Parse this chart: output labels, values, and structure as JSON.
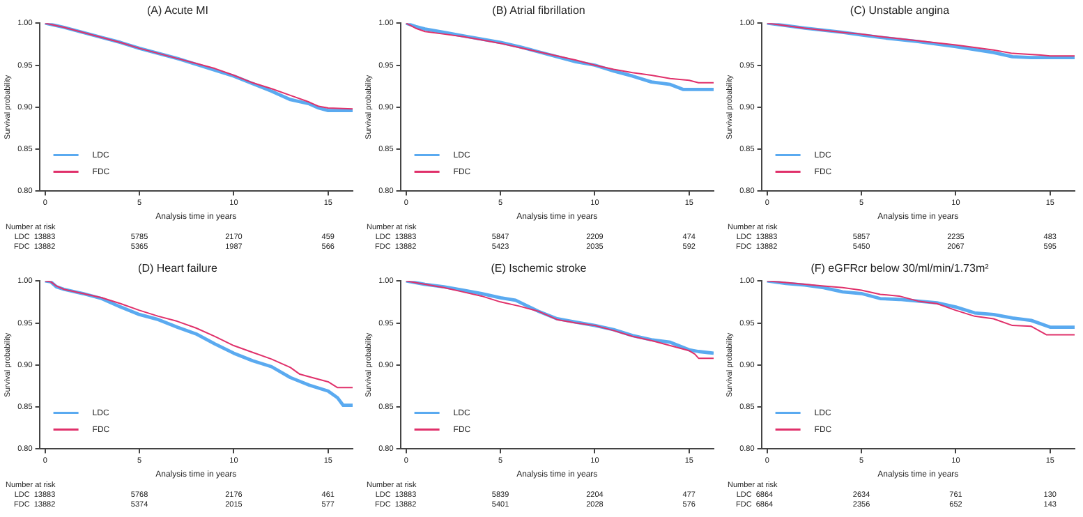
{
  "chart_data": [
    {
      "type": "line",
      "title": "(A) Acute MI",
      "xlabel": "Analysis time in years",
      "ylabel": "Survival probability",
      "xlim": [
        -0.3,
        16.3
      ],
      "xticks": [
        0,
        5,
        10,
        15
      ],
      "ylim": [
        0.8,
        1.0
      ],
      "yticks": [
        {
          "value": 0.8,
          "label": "0.80"
        },
        {
          "value": 0.85,
          "label": "0.85"
        },
        {
          "value": 0.9,
          "label": "0.90"
        },
        {
          "value": 0.95,
          "label": "0.95"
        },
        {
          "value": 1.0,
          "label": "1.00"
        }
      ],
      "grid": false,
      "legend": "bottom left",
      "marker": "none",
      "line_style": "solid",
      "series": [
        {
          "name": "LDC",
          "color": "#5aaaf0",
          "x": [
            0,
            1,
            2,
            3,
            4,
            5,
            6,
            7,
            8,
            9,
            10,
            11,
            12,
            13,
            14,
            14.5,
            15,
            16.3
          ],
          "values": [
            1,
            0.995,
            0.989,
            0.983,
            0.977,
            0.97,
            0.964,
            0.958,
            0.951,
            0.944,
            0.937,
            0.928,
            0.919,
            0.909,
            0.904,
            0.899,
            0.896,
            0.896
          ]
        },
        {
          "name": "FDC",
          "color": "#e0306a",
          "x": [
            0,
            1,
            2,
            3,
            4,
            5,
            6,
            7,
            8,
            9,
            10,
            11,
            12,
            13,
            14,
            14.5,
            15,
            16.3
          ],
          "values": [
            1,
            0.995,
            0.989,
            0.983,
            0.977,
            0.97,
            0.964,
            0.958,
            0.952,
            0.946,
            0.938,
            0.929,
            0.922,
            0.914,
            0.906,
            0.901,
            0.899,
            0.898
          ]
        }
      ],
      "annotations": [
        "Number at risk",
        "LDC",
        "13883",
        "5785",
        "2170",
        "459",
        "FDC",
        "13882",
        "5365",
        "1987",
        "566"
      ]
    },
    {
      "type": "line",
      "title": "(B) Atrial fibrillation",
      "xlabel": "Analysis time in years",
      "ylabel": "Survival probability",
      "xlim": [
        -0.3,
        16.3
      ],
      "xticks": [
        0,
        5,
        10,
        15
      ],
      "ylim": [
        0.8,
        1.0
      ],
      "yticks": [
        {
          "value": 0.8,
          "label": "0.80"
        },
        {
          "value": 0.85,
          "label": "0.85"
        },
        {
          "value": 0.9,
          "label": "0.90"
        },
        {
          "value": 0.95,
          "label": "0.95"
        },
        {
          "value": 1.0,
          "label": "1.00"
        }
      ],
      "grid": false,
      "legend": "bottom left",
      "marker": "none",
      "line_style": "solid",
      "series": [
        {
          "name": "LDC",
          "color": "#5aaaf0",
          "x": [
            0,
            0.5,
            1,
            2,
            3,
            4,
            5,
            6,
            7,
            8,
            9,
            10,
            11,
            12,
            13,
            14,
            14.7,
            16.3
          ],
          "values": [
            1,
            0.996,
            0.993,
            0.989,
            0.985,
            0.981,
            0.977,
            0.972,
            0.966,
            0.96,
            0.954,
            0.95,
            0.943,
            0.937,
            0.93,
            0.927,
            0.921,
            0.921
          ]
        },
        {
          "name": "FDC",
          "color": "#e0306a",
          "x": [
            0,
            0.5,
            1,
            2,
            3,
            4,
            5,
            6,
            7,
            8,
            9,
            10,
            11,
            12,
            13,
            14,
            15,
            15.5,
            16.3
          ],
          "values": [
            1,
            0.994,
            0.99,
            0.987,
            0.984,
            0.98,
            0.976,
            0.971,
            0.966,
            0.961,
            0.956,
            0.95,
            0.945,
            0.941,
            0.938,
            0.934,
            0.932,
            0.929,
            0.929
          ]
        }
      ],
      "annotations": [
        "Number at risk",
        "LDC",
        "13883",
        "5847",
        "2209",
        "474",
        "FDC",
        "13882",
        "5423",
        "2035",
        "592"
      ]
    },
    {
      "type": "line",
      "title": "(C) Unstable angina",
      "xlabel": "Analysis time in years",
      "ylabel": "Survival probability",
      "xlim": [
        -0.3,
        16.3
      ],
      "xticks": [
        0,
        5,
        10,
        15
      ],
      "ylim": [
        0.8,
        1.0
      ],
      "yticks": [
        {
          "value": 0.8,
          "label": "0.80"
        },
        {
          "value": 0.85,
          "label": "0.85"
        },
        {
          "value": 0.9,
          "label": "0.90"
        },
        {
          "value": 0.95,
          "label": "0.95"
        },
        {
          "value": 1.0,
          "label": "1.00"
        }
      ],
      "grid": false,
      "legend": "bottom left",
      "marker": "none",
      "line_style": "solid",
      "series": [
        {
          "name": "LDC",
          "color": "#5aaaf0",
          "x": [
            0,
            2,
            4,
            5,
            6,
            8,
            10,
            12,
            13,
            14,
            16.3
          ],
          "values": [
            1,
            0.994,
            0.989,
            0.986,
            0.983,
            0.978,
            0.972,
            0.965,
            0.96,
            0.959,
            0.959
          ]
        },
        {
          "name": "FDC",
          "color": "#e0306a",
          "x": [
            0,
            2,
            4,
            5,
            6,
            8,
            10,
            12,
            13,
            14.5,
            15,
            16.3
          ],
          "values": [
            1,
            0.994,
            0.989,
            0.987,
            0.984,
            0.979,
            0.974,
            0.968,
            0.964,
            0.962,
            0.961,
            0.961
          ]
        }
      ],
      "annotations": [
        "Number at risk",
        "LDC",
        "13883",
        "5857",
        "2235",
        "483",
        "FDC",
        "13882",
        "5450",
        "2067",
        "595"
      ]
    },
    {
      "type": "line",
      "title": "(D) Heart failure",
      "xlabel": "Analysis time in years",
      "ylabel": "Survival probability",
      "xlim": [
        -0.3,
        16.3
      ],
      "xticks": [
        0,
        5,
        10,
        15
      ],
      "ylim": [
        0.8,
        1.0
      ],
      "yticks": [
        {
          "value": 0.8,
          "label": "0.80"
        },
        {
          "value": 0.85,
          "label": "0.85"
        },
        {
          "value": 0.9,
          "label": "0.90"
        },
        {
          "value": 0.95,
          "label": "0.95"
        },
        {
          "value": 1.0,
          "label": "1.00"
        }
      ],
      "grid": false,
      "legend": "bottom left",
      "marker": "none",
      "line_style": "solid",
      "series": [
        {
          "name": "LDC",
          "color": "#5aaaf0",
          "x": [
            0,
            0.3,
            0.6,
            1,
            2,
            3,
            4,
            5,
            6,
            7,
            8,
            9,
            10,
            11,
            12,
            13,
            14,
            15,
            15.5,
            15.8,
            16.3
          ],
          "values": [
            1,
            0.999,
            0.993,
            0.99,
            0.985,
            0.979,
            0.969,
            0.96,
            0.954,
            0.945,
            0.937,
            0.925,
            0.914,
            0.905,
            0.898,
            0.885,
            0.876,
            0.869,
            0.861,
            0.852,
            0.852
          ]
        },
        {
          "name": "FDC",
          "color": "#e0306a",
          "x": [
            0,
            0.3,
            0.6,
            1,
            2,
            3,
            4,
            5,
            6,
            7,
            8,
            9,
            10,
            11,
            12,
            13,
            13.5,
            14,
            15,
            15.5,
            16.3
          ],
          "values": [
            1,
            0.999,
            0.994,
            0.99,
            0.985,
            0.98,
            0.973,
            0.965,
            0.958,
            0.952,
            0.944,
            0.934,
            0.923,
            0.915,
            0.907,
            0.897,
            0.889,
            0.886,
            0.88,
            0.873,
            0.873
          ]
        }
      ],
      "annotations": [
        "Number at risk",
        "LDC",
        "13883",
        "5768",
        "2176",
        "461",
        "FDC",
        "13882",
        "5374",
        "2015",
        "577"
      ]
    },
    {
      "type": "line",
      "title": "(E) Ischemic stroke",
      "xlabel": "Analysis time in years",
      "ylabel": "Survival probability",
      "xlim": [
        -0.3,
        16.3
      ],
      "xticks": [
        0,
        5,
        10,
        15
      ],
      "ylim": [
        0.8,
        1.0
      ],
      "yticks": [
        {
          "value": 0.8,
          "label": "0.80"
        },
        {
          "value": 0.85,
          "label": "0.85"
        },
        {
          "value": 0.9,
          "label": "0.90"
        },
        {
          "value": 0.95,
          "label": "0.95"
        },
        {
          "value": 1.0,
          "label": "1.00"
        }
      ],
      "grid": false,
      "legend": "bottom left",
      "marker": "none",
      "line_style": "solid",
      "series": [
        {
          "name": "LDC",
          "color": "#5aaaf0",
          "x": [
            0,
            1,
            2,
            3,
            4,
            5,
            5.8,
            7,
            8,
            9,
            10,
            11,
            12,
            13,
            14,
            15,
            15.5,
            16.3
          ],
          "values": [
            1,
            0.996,
            0.993,
            0.989,
            0.985,
            0.98,
            0.977,
            0.964,
            0.955,
            0.951,
            0.947,
            0.942,
            0.935,
            0.93,
            0.927,
            0.918,
            0.916,
            0.914
          ]
        },
        {
          "name": "FDC",
          "color": "#e0306a",
          "x": [
            0,
            1,
            2,
            3,
            4,
            5,
            6,
            7,
            8,
            9,
            10,
            11,
            12,
            13,
            14,
            15,
            15.3,
            15.5,
            16.3
          ],
          "values": [
            1,
            0.996,
            0.992,
            0.987,
            0.982,
            0.975,
            0.97,
            0.964,
            0.954,
            0.95,
            0.947,
            0.941,
            0.934,
            0.929,
            0.923,
            0.917,
            0.913,
            0.908,
            0.908
          ]
        }
      ],
      "annotations": [
        "Number at risk",
        "LDC",
        "13883",
        "5839",
        "2204",
        "477",
        "FDC",
        "13882",
        "5401",
        "2028",
        "576"
      ]
    },
    {
      "type": "line",
      "title": "(F) eGFRcr below 30/ml/min/1.73m²",
      "xlabel": "Analysis time in years",
      "ylabel": "Survival probability",
      "xlim": [
        -0.3,
        16.3
      ],
      "xticks": [
        0,
        5,
        10,
        15
      ],
      "ylim": [
        0.8,
        1.0
      ],
      "yticks": [
        {
          "value": 0.8,
          "label": "0.80"
        },
        {
          "value": 0.85,
          "label": "0.85"
        },
        {
          "value": 0.9,
          "label": "0.90"
        },
        {
          "value": 0.95,
          "label": "0.95"
        },
        {
          "value": 1.0,
          "label": "1.00"
        }
      ],
      "grid": false,
      "legend": "bottom left",
      "marker": "none",
      "line_style": "solid",
      "series": [
        {
          "name": "LDC",
          "color": "#5aaaf0",
          "x": [
            0,
            1,
            2,
            3,
            4,
            5,
            6,
            7,
            8,
            9,
            10,
            11,
            12,
            13,
            14,
            15,
            16.3
          ],
          "values": [
            1,
            0.997,
            0.995,
            0.992,
            0.987,
            0.985,
            0.979,
            0.978,
            0.976,
            0.974,
            0.969,
            0.962,
            0.96,
            0.956,
            0.953,
            0.945,
            0.945
          ]
        },
        {
          "name": "FDC",
          "color": "#e0306a",
          "x": [
            0,
            1,
            2,
            3,
            4,
            5,
            6,
            7,
            8,
            9,
            10,
            11,
            12,
            13,
            14,
            14.8,
            16.3
          ],
          "values": [
            1,
            0.998,
            0.996,
            0.994,
            0.992,
            0.989,
            0.984,
            0.982,
            0.976,
            0.973,
            0.965,
            0.958,
            0.955,
            0.947,
            0.946,
            0.936,
            0.936
          ]
        }
      ],
      "annotations": [
        "Number at risk",
        "LDC",
        "6864",
        "2634",
        "761",
        "130",
        "FDC",
        "6864",
        "2356",
        "652",
        "143"
      ]
    }
  ]
}
